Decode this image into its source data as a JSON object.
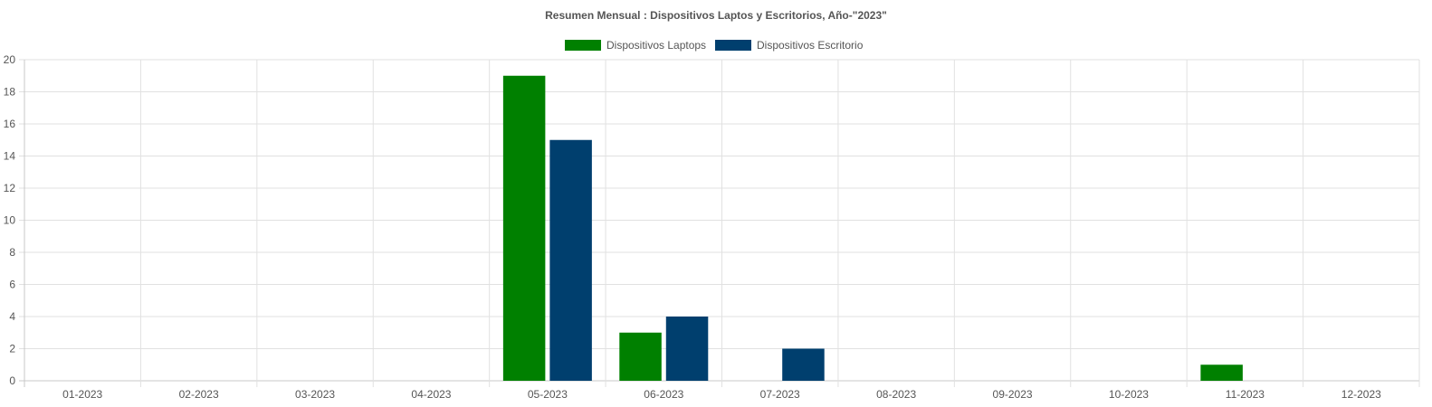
{
  "chart_data": {
    "type": "bar",
    "title": "Resumen Mensual : Dispositivos Laptos y Escritorios, Año-\"2023\"",
    "categories": [
      "01-2023",
      "02-2023",
      "03-2023",
      "04-2023",
      "05-2023",
      "06-2023",
      "07-2023",
      "08-2023",
      "09-2023",
      "10-2023",
      "11-2023",
      "12-2023"
    ],
    "series": [
      {
        "name": "Dispositivos Laptops",
        "color": "#008000",
        "values": [
          0,
          0,
          0,
          0,
          19,
          3,
          0,
          0,
          0,
          0,
          1,
          0
        ]
      },
      {
        "name": "Dispositivos Escritorio",
        "color": "#003f6e",
        "values": [
          0,
          0,
          0,
          0,
          15,
          4,
          2,
          0,
          0,
          0,
          0,
          0
        ]
      }
    ],
    "ylim": [
      0,
      20
    ],
    "yticks": [
      "0",
      "2",
      "4",
      "6",
      "8",
      "10",
      "12",
      "14",
      "16",
      "18",
      "20"
    ],
    "grid": true,
    "legend": "top-center"
  }
}
